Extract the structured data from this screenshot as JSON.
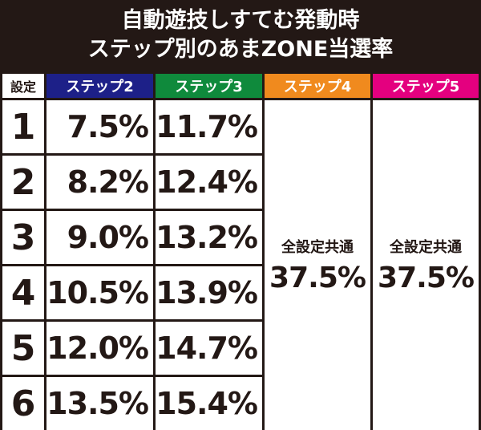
{
  "header": {
    "title": [
      "自動遊技しすてむ発動時",
      "ステップ別のあまZONE当選率"
    ]
  },
  "table": {
    "columns": [
      "設定",
      "ステップ2",
      "ステップ3",
      "ステップ4",
      "ステップ5"
    ],
    "rows": [
      [
        "1",
        "7.5%",
        "11.7%"
      ],
      [
        "2",
        "8.2%",
        "12.4%"
      ],
      [
        "3",
        "9.0%",
        "13.2%"
      ],
      [
        "4",
        "10.5%",
        "13.9%"
      ],
      [
        "5",
        "12.0%",
        "14.7%"
      ],
      [
        "6",
        "13.5%",
        "15.4%"
      ]
    ],
    "merged": [
      {
        "label": "全設定共通",
        "value": "37.5%"
      },
      {
        "label": "全設定共通",
        "value": "37.5%"
      }
    ]
  }
}
